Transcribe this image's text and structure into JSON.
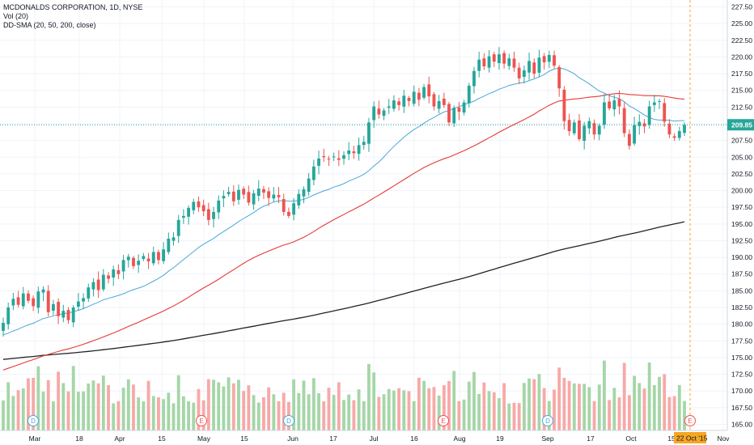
{
  "header": {
    "symbol_line": "MCDONALDS CORPORATION, 1D, NYSE",
    "vol_line": "Vol (20)",
    "sma_line": "DD-SMA (20, 50, 200, close)"
  },
  "last_price_label": "209.85",
  "date_label": "22 Oct '15",
  "colors": {
    "up": "#26a69a",
    "up_vol": "#a5d6a7",
    "down": "#ef5350",
    "down_vol": "#f7a9a7",
    "sma20": "#4aa8d8",
    "sma50": "#e53935",
    "sma200": "#222222",
    "price_line": "#26a69a",
    "date_line": "#f5a623"
  },
  "chart_data": {
    "type": "candlestick",
    "title": "MCDONALDS CORPORATION, 1D, NYSE",
    "indicators": [
      "Vol (20)",
      "DD-SMA (20, 50, 200, close)"
    ],
    "y_axis": {
      "min": 165.0,
      "max": 227.5,
      "side": "right",
      "ticks": [
        "227.50",
        "225.00",
        "222.50",
        "220.00",
        "217.50",
        "215.00",
        "212.50",
        "210.00",
        "207.50",
        "205.00",
        "202.50",
        "200.00",
        "197.50",
        "195.00",
        "192.50",
        "190.00",
        "187.50",
        "185.00",
        "182.50",
        "180.00",
        "177.50",
        "175.00",
        "172.50",
        "170.00",
        "167.50",
        "165.00"
      ]
    },
    "x_axis": {
      "ticks": [
        "Mar",
        "18",
        "Apr",
        "15",
        "May",
        "15",
        "Jun",
        "17",
        "Jul",
        "16",
        "Aug",
        "19",
        "Sep",
        "17",
        "Oct",
        "15",
        "Nov"
      ]
    },
    "events": [
      "D",
      "E",
      "D",
      "E",
      "D",
      "E"
    ],
    "last_price": 209.85,
    "close": [
      180.2,
      182.5,
      183.8,
      182.9,
      184.6,
      183.5,
      182.7,
      184.9,
      185.2,
      181.8,
      183.0,
      181.2,
      182.0,
      180.6,
      182.5,
      183.4,
      183.9,
      185.5,
      186.3,
      185.1,
      187.4,
      186.8,
      188.2,
      187.5,
      189.6,
      190.1,
      188.7,
      189.5,
      190.2,
      189.4,
      190.8,
      189.6,
      191.2,
      192.8,
      193.0,
      195.6,
      196.2,
      197.4,
      198.3,
      197.5,
      196.9,
      195.6,
      196.8,
      198.5,
      199.2,
      199.8,
      198.4,
      200.1,
      199.4,
      198.2,
      199.6,
      200.3,
      199.7,
      198.9,
      199.4,
      199.0,
      196.8,
      196.2,
      198.1,
      199.5,
      200.2,
      201.8,
      203.6,
      204.8,
      205.0,
      204.7,
      205.1,
      204.6,
      205.3,
      206.0,
      205.6,
      206.8,
      207.3,
      210.2,
      212.6,
      211.4,
      212.0,
      212.6,
      213.5,
      212.8,
      214.2,
      213.4,
      214.8,
      213.6,
      215.5,
      214.1,
      212.6,
      213.4,
      212.8,
      210.2,
      212.4,
      211.8,
      213.2,
      215.7,
      217.9,
      219.6,
      218.6,
      220.1,
      219.3,
      220.4,
      219.0,
      219.8,
      218.4,
      216.8,
      218.0,
      219.4,
      217.5,
      219.9,
      219.2,
      220.3,
      218.7,
      215.3,
      210.4,
      208.9,
      210.2,
      207.7,
      209.7,
      210.4,
      208.4,
      209.7,
      213.2,
      212.3,
      213.5,
      212.6,
      208.6,
      206.7,
      209.8,
      210.3,
      209.6,
      212.6,
      213.2,
      213.4,
      210.3,
      208.4,
      207.9,
      208.9,
      209.85
    ]
  }
}
